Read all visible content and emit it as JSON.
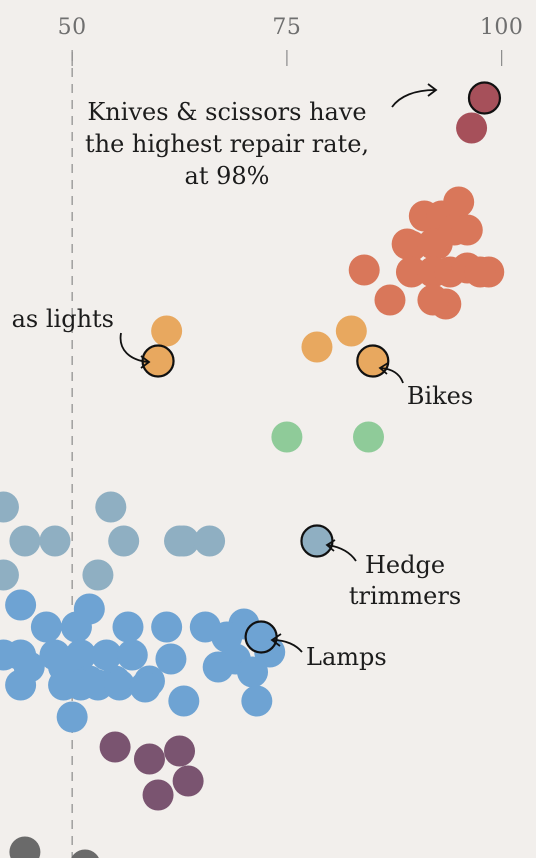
{
  "chart_data": {
    "type": "scatter",
    "title": "",
    "subtitle": "",
    "xlabel": "",
    "ylabel": "",
    "x_ticks": [
      50,
      75,
      100
    ],
    "xlim": [
      41.6,
      104
    ],
    "grid": "dashed vertical line at 50",
    "legend": "none",
    "groups": [
      {
        "color": "#a6505a",
        "points": [
          {
            "x": 98,
            "highlight": true
          },
          {
            "x": 96.5
          }
        ]
      },
      {
        "color": "#d9775a",
        "points": [
          {
            "x": 91
          },
          {
            "x": 93
          },
          {
            "x": 95
          },
          {
            "x": 89.5
          },
          {
            "x": 92.5
          },
          {
            "x": 94.5
          },
          {
            "x": 89
          },
          {
            "x": 92
          },
          {
            "x": 96
          },
          {
            "x": 89.5
          },
          {
            "x": 92
          },
          {
            "x": 94
          },
          {
            "x": 96
          },
          {
            "x": 98.5
          },
          {
            "x": 84
          },
          {
            "x": 87
          },
          {
            "x": 93.5
          },
          {
            "x": 92
          },
          {
            "x": 97.5
          }
        ]
      },
      {
        "color": "#e8a85f",
        "points": [
          {
            "x": 61
          },
          {
            "x": 82.5
          },
          {
            "x": 60,
            "highlight": true
          },
          {
            "x": 78.5
          },
          {
            "x": 85,
            "highlight": true
          }
        ]
      },
      {
        "color": "#8fcb99",
        "points": [
          {
            "x": 75
          },
          {
            "x": 84.5
          }
        ]
      },
      {
        "color": "#8fafc2",
        "points": [
          {
            "x": 42
          },
          {
            "x": 54.5
          },
          {
            "x": 63
          },
          {
            "x": 44.5
          },
          {
            "x": 48
          },
          {
            "x": 56
          },
          {
            "x": 62.5
          },
          {
            "x": 66
          },
          {
            "x": 42
          },
          {
            "x": 53
          },
          {
            "x": 78.5,
            "highlight": true
          }
        ]
      },
      {
        "color": "#6ea3d3",
        "points": [
          {
            "x": 44
          },
          {
            "x": 52
          },
          {
            "x": 70
          },
          {
            "x": 61
          },
          {
            "x": 47
          },
          {
            "x": 50.5
          },
          {
            "x": 56.5
          },
          {
            "x": 65.5
          },
          {
            "x": 68
          },
          {
            "x": 72,
            "highlight": true
          },
          {
            "x": 42
          },
          {
            "x": 44
          },
          {
            "x": 48
          },
          {
            "x": 51
          },
          {
            "x": 54
          },
          {
            "x": 57
          },
          {
            "x": 61.5
          },
          {
            "x": 69
          },
          {
            "x": 73
          },
          {
            "x": 45
          },
          {
            "x": 49
          },
          {
            "x": 52
          },
          {
            "x": 55
          },
          {
            "x": 59
          },
          {
            "x": 67
          },
          {
            "x": 71
          },
          {
            "x": 44
          },
          {
            "x": 49
          },
          {
            "x": 51
          },
          {
            "x": 53
          },
          {
            "x": 55.5
          },
          {
            "x": 58.5
          },
          {
            "x": 63
          },
          {
            "x": 71.5
          },
          {
            "x": 50
          }
        ]
      },
      {
        "color": "#7a5470",
        "points": [
          {
            "x": 59
          },
          {
            "x": 62.5
          },
          {
            "x": 55
          },
          {
            "x": 63.5
          },
          {
            "x": 60
          }
        ]
      },
      {
        "color": "#6a6a6a",
        "points": [
          {
            "x": 44.5
          },
          {
            "x": 51.5
          }
        ]
      }
    ],
    "annotations": [
      {
        "lines": [
          "Knives & scissors have",
          "the highest repair rate,",
          "at 98%"
        ]
      },
      {
        "lines": [
          "as lights"
        ]
      },
      {
        "lines": [
          "Bikes"
        ]
      },
      {
        "lines": [
          "Hedge",
          "trimmers"
        ]
      },
      {
        "lines": [
          "Lamps"
        ]
      }
    ]
  }
}
